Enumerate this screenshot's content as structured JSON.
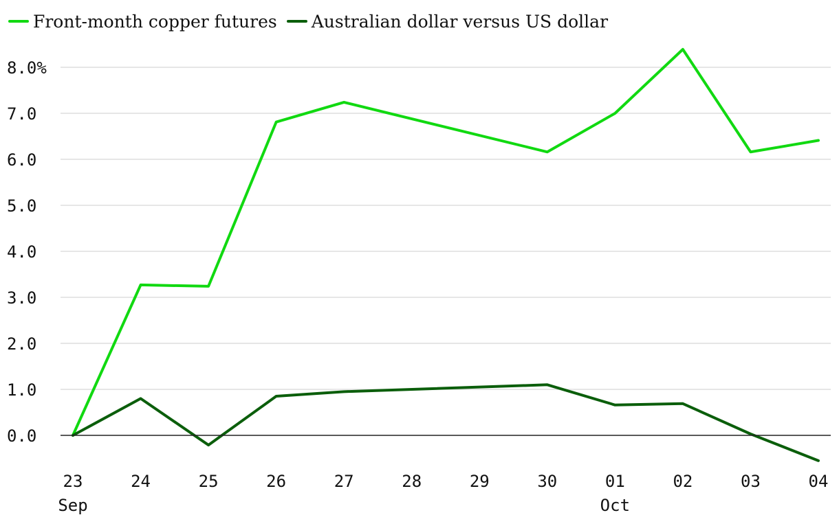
{
  "chart_data": {
    "type": "line",
    "categories": [
      "23",
      "24",
      "25",
      "26",
      "27",
      "28",
      "29",
      "30",
      "01",
      "02",
      "03",
      "04"
    ],
    "category_sublabels": [
      "Sep",
      "",
      "",
      "",
      "",
      "",
      "",
      "",
      "Oct",
      "",
      "",
      ""
    ],
    "series": [
      {
        "name": "Front-month copper futures",
        "color": "#11d911",
        "values": [
          0.0,
          3.27,
          3.24,
          6.81,
          7.24,
          null,
          null,
          6.16,
          7.0,
          8.39,
          6.16,
          6.41
        ]
      },
      {
        "name": "Australian dollar versus US dollar",
        "color": "#0b5e0b",
        "values": [
          0.0,
          0.8,
          -0.21,
          0.85,
          0.95,
          null,
          null,
          1.1,
          0.66,
          0.69,
          0.03,
          -0.55
        ]
      }
    ],
    "yticks": [
      {
        "value": 0,
        "label": "0.0"
      },
      {
        "value": 1,
        "label": "1.0"
      },
      {
        "value": 2,
        "label": "2.0"
      },
      {
        "value": 3,
        "label": "3.0"
      },
      {
        "value": 4,
        "label": "4.0"
      },
      {
        "value": 5,
        "label": "5.0"
      },
      {
        "value": 6,
        "label": "6.0"
      },
      {
        "value": 7,
        "label": "7.0"
      },
      {
        "value": 8,
        "label": "8.0%"
      }
    ],
    "ylim": [
      -0.6,
      8.6
    ],
    "grid": true,
    "legend_position": "top-left",
    "title": "",
    "xlabel": "",
    "ylabel": ""
  }
}
